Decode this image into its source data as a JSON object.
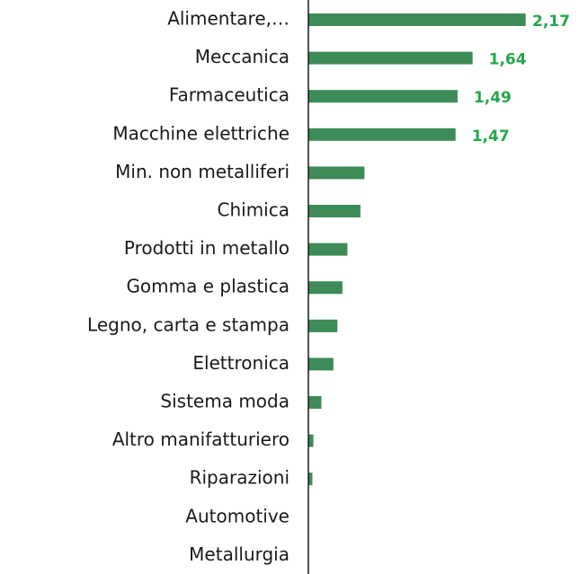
{
  "chart_data": {
    "type": "bar",
    "orientation": "horizontal",
    "categories": [
      "Alimentare,…",
      "Meccanica",
      "Farmaceutica",
      "Macchine elettriche",
      "Min. non metalliferi",
      "Chimica",
      "Prodotti in metallo",
      "Gomma e plastica",
      "Legno, carta e stampa",
      "Elettronica",
      "Sistema moda",
      "Altro manifatturiero",
      "Riparazioni",
      "Automotive",
      "Metallurgia"
    ],
    "values": [
      2.17,
      1.64,
      1.49,
      1.47,
      0.56,
      0.52,
      0.39,
      0.34,
      0.29,
      0.25,
      0.13,
      0.05,
      0.04,
      0,
      0
    ],
    "value_labels": [
      "2,17",
      "1,64",
      "1,49",
      "1,47",
      null,
      null,
      null,
      null,
      null,
      null,
      null,
      null,
      null,
      null,
      null
    ],
    "color": "#3d8b57",
    "xlim": [
      0,
      2.2
    ]
  }
}
